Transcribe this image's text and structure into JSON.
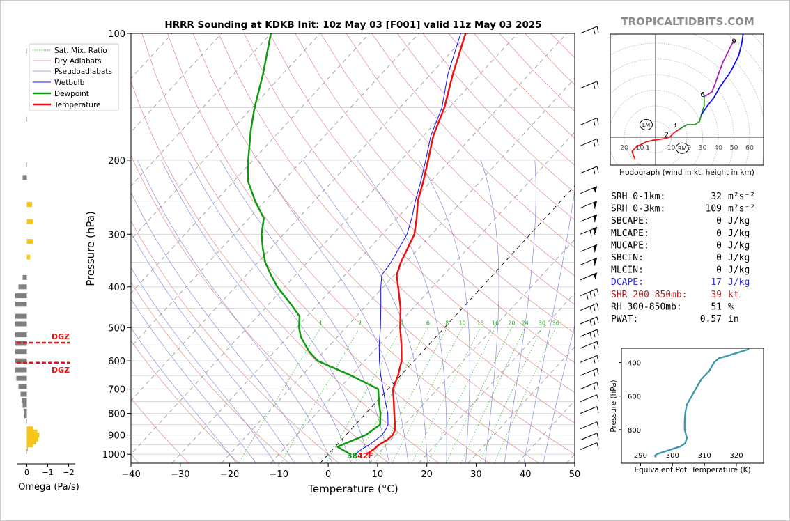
{
  "brand": "TROPICALTIDBITS.COM",
  "chart_data": [
    {
      "type": "line",
      "subtype": "skew-t",
      "title": "HRRR Sounding at KDKB Init: 10z May 03 [F001] valid 11z May 03 2025",
      "xlabel": "Temperature (°C)",
      "ylabel": "Pressure (hPa)",
      "xlim": [
        -40,
        50
      ],
      "ylim": [
        1050,
        100
      ],
      "yscale": "log",
      "xticks": [
        "−40",
        "−30",
        "−20",
        "−10",
        "0",
        "10",
        "20",
        "30",
        "40",
        "50"
      ],
      "yticks": [
        "100",
        "200",
        "300",
        "400",
        "500",
        "600",
        "700",
        "800",
        "900",
        "1000"
      ],
      "mixing_ratio_labels": [
        "1",
        "2",
        "4",
        "6",
        "8",
        "10",
        "13",
        "16",
        "20",
        "24",
        "30",
        "36"
      ],
      "legend": {
        "placement": "top-left",
        "entries": [
          "Sat. Mix. Ratio",
          "Dry Adiabats",
          "Pseudoadiabats",
          "Wetbulb",
          "Dewpoint",
          "Temperature"
        ]
      },
      "series": [
        {
          "name": "Temperature",
          "color": "#ee1111",
          "points": [
            [
              1000,
              7.7
            ],
            [
              975,
              8.3
            ],
            [
              950,
              8.5
            ],
            [
              925,
              9.3
            ],
            [
              900,
              9.5
            ],
            [
              875,
              9.0
            ],
            [
              850,
              8.0
            ],
            [
              800,
              5.8
            ],
            [
              750,
              3.5
            ],
            [
              700,
              1.0
            ],
            [
              650,
              -0.5
            ],
            [
              600,
              -2.5
            ],
            [
              550,
              -5.5
            ],
            [
              500,
              -9.0
            ],
            [
              450,
              -12.5
            ],
            [
              400,
              -17.0
            ],
            [
              375,
              -19.5
            ],
            [
              350,
              -21.0
            ],
            [
              300,
              -23.5
            ],
            [
              275,
              -26.0
            ],
            [
              250,
              -29.0
            ],
            [
              225,
              -31.5
            ],
            [
              200,
              -34.5
            ],
            [
              175,
              -38.0
            ],
            [
              150,
              -41.0
            ],
            [
              125,
              -45.5
            ],
            [
              100,
              -50.5
            ]
          ]
        },
        {
          "name": "Dewpoint",
          "color": "#119911",
          "points": [
            [
              1000,
              4.5
            ],
            [
              975,
              2.0
            ],
            [
              960,
              0.5
            ],
            [
              950,
              1.0
            ],
            [
              925,
              2.5
            ],
            [
              900,
              4.0
            ],
            [
              850,
              5.0
            ],
            [
              800,
              3.0
            ],
            [
              750,
              0.5
            ],
            [
              700,
              -2.0
            ],
            [
              650,
              -10.0
            ],
            [
              600,
              -19.5
            ],
            [
              570,
              -23.0
            ],
            [
              550,
              -25.0
            ],
            [
              525,
              -27.5
            ],
            [
              500,
              -29.5
            ],
            [
              470,
              -31.5
            ],
            [
              440,
              -35.5
            ],
            [
              400,
              -41.5
            ],
            [
              375,
              -45.0
            ],
            [
              350,
              -48.5
            ],
            [
              325,
              -51.5
            ],
            [
              300,
              -54.5
            ],
            [
              275,
              -57.0
            ],
            [
              250,
              -62.0
            ],
            [
              225,
              -67.0
            ],
            [
              200,
              -71.0
            ],
            [
              170,
              -76.0
            ],
            [
              150,
              -79.5
            ],
            [
              125,
              -84.0
            ],
            [
              100,
              -90.0
            ]
          ]
        },
        {
          "name": "Wetbulb",
          "color": "#1111ee",
          "points": [
            [
              1000,
              5.5
            ],
            [
              975,
              5.8
            ],
            [
              950,
              6.5
            ],
            [
              925,
              7.0
            ],
            [
              900,
              7.3
            ],
            [
              875,
              7.1
            ],
            [
              850,
              6.6
            ],
            [
              800,
              4.5
            ],
            [
              750,
              1.8
            ],
            [
              700,
              -1.0
            ],
            [
              650,
              -4.0
            ],
            [
              600,
              -7.0
            ],
            [
              550,
              -10.0
            ],
            [
              500,
              -13.0
            ],
            [
              450,
              -16.5
            ],
            [
              400,
              -20.5
            ],
            [
              375,
              -22.5
            ],
            [
              350,
              -23.0
            ],
            [
              300,
              -25.0
            ],
            [
              275,
              -27.0
            ],
            [
              250,
              -29.5
            ],
            [
              225,
              -32.0
            ],
            [
              200,
              -35.0
            ],
            [
              175,
              -38.5
            ],
            [
              150,
              -41.5
            ],
            [
              125,
              -46.5
            ],
            [
              100,
              -51.5
            ]
          ]
        }
      ],
      "annotations": [
        "38",
        "42F"
      ]
    },
    {
      "type": "bar",
      "subtype": "omega-profile",
      "xlabel": "Omega (Pa/s)",
      "xticks": [
        "0",
        "−1",
        "−2"
      ],
      "xlim": [
        0.5,
        -2.5
      ],
      "dgz_label": "DGZ",
      "dgz_pressures": [
        543,
        606
      ],
      "values": [
        [
          985,
          0.0
        ],
        [
          970,
          -0.05
        ],
        [
          950,
          -0.3
        ],
        [
          935,
          -0.45
        ],
        [
          920,
          -0.55
        ],
        [
          900,
          -0.6
        ],
        [
          885,
          -0.5
        ],
        [
          870,
          -0.3
        ],
        [
          835,
          0.05
        ],
        [
          810,
          0.12
        ],
        [
          790,
          0.15
        ],
        [
          765,
          0.2
        ],
        [
          745,
          0.25
        ],
        [
          720,
          0.3
        ],
        [
          690,
          0.4
        ],
        [
          660,
          0.5
        ],
        [
          630,
          0.6
        ],
        [
          600,
          0.75
        ],
        [
          570,
          0.85
        ],
        [
          545,
          0.8
        ],
        [
          520,
          0.9
        ],
        [
          490,
          1.0
        ],
        [
          470,
          0.95
        ],
        [
          440,
          0.85
        ],
        [
          420,
          0.75
        ],
        [
          400,
          0.4
        ],
        [
          380,
          0.2
        ],
        [
          340,
          -0.15
        ],
        [
          312,
          -0.3
        ],
        [
          280,
          -0.3
        ],
        [
          255,
          -0.25
        ],
        [
          220,
          0.2
        ],
        [
          205,
          0.05
        ],
        [
          160,
          0.0
        ],
        [
          110,
          0.02
        ]
      ]
    },
    {
      "type": "line",
      "subtype": "hodograph",
      "caption": "Hodograph (wind in kt, height in km)",
      "ring_labels_left": [
        "20",
        "10"
      ],
      "ring_labels_right": [
        "10",
        "20",
        "30",
        "40",
        "50",
        "60"
      ],
      "height_labels": [
        "1",
        "2",
        "3",
        "6",
        "9"
      ],
      "storm_motion_labels": [
        "LM",
        "RM"
      ],
      "segments": [
        {
          "color": "#ee1111",
          "points": [
            [
              -13,
              -14
            ],
            [
              -14,
              -12
            ],
            [
              -15,
              -9
            ],
            [
              -12,
              -6
            ],
            [
              -6,
              -3
            ],
            [
              -2,
              -2
            ],
            [
              5,
              -1
            ],
            [
              9,
              0
            ],
            [
              12,
              3
            ],
            [
              15,
              5
            ]
          ]
        },
        {
          "color": "#229922",
          "points": [
            [
              15,
              5
            ],
            [
              20,
              8
            ],
            [
              25,
              8
            ],
            [
              28,
              10
            ],
            [
              30,
              17
            ],
            [
              31,
              20
            ],
            [
              31,
              26
            ]
          ]
        },
        {
          "color": "#aa22aa",
          "points": [
            [
              31,
              26
            ],
            [
              33,
              27
            ],
            [
              36,
              29
            ],
            [
              38,
              34
            ],
            [
              40,
              40
            ],
            [
              43,
              48
            ],
            [
              48,
              58
            ],
            [
              50,
              62
            ]
          ]
        },
        {
          "color": "#1111ee",
          "points": [
            [
              29,
              14
            ],
            [
              33,
              20
            ],
            [
              37,
              25
            ],
            [
              41,
              32
            ],
            [
              48,
              42
            ],
            [
              53,
              52
            ],
            [
              55,
              60
            ],
            [
              56,
              67
            ]
          ]
        }
      ],
      "lm": [
        -6,
        8
      ],
      "rm": [
        17,
        -7
      ]
    },
    {
      "type": "line",
      "subtype": "theta-e-profile",
      "xlabel": "Equivalent Pot. Temperature (K)",
      "ylabel": "Pressure (hPa)",
      "xticks": [
        "290",
        "300",
        "310",
        "320"
      ],
      "yticks": [
        "400",
        "600",
        "800"
      ],
      "color": "#3a96a8",
      "points": [
        [
          965,
          294.8
        ],
        [
          955,
          294.5
        ],
        [
          945,
          295.2
        ],
        [
          925,
          298.5
        ],
        [
          900,
          302.5
        ],
        [
          880,
          304.0
        ],
        [
          850,
          304.5
        ],
        [
          800,
          303.8
        ],
        [
          750,
          303.8
        ],
        [
          700,
          304.0
        ],
        [
          650,
          304.5
        ],
        [
          600,
          306.0
        ],
        [
          550,
          307.5
        ],
        [
          500,
          309.0
        ],
        [
          450,
          311.5
        ],
        [
          400,
          313.0
        ],
        [
          375,
          314.5
        ],
        [
          350,
          319.0
        ],
        [
          320,
          324.0
        ]
      ]
    }
  ],
  "indices": [
    {
      "label": "SRH 0-1km:",
      "value": "32",
      "unit": "m²s⁻²",
      "color": "#000000"
    },
    {
      "label": "SRH 0-3km:",
      "value": "109",
      "unit": "m²s⁻²",
      "color": "#000000"
    },
    {
      "label": "SBCAPE:",
      "value": "0",
      "unit": "J/kg",
      "color": "#000000"
    },
    {
      "label": "MLCAPE:",
      "value": "0",
      "unit": "J/kg",
      "color": "#000000"
    },
    {
      "label": "MUCAPE:",
      "value": "0",
      "unit": "J/kg",
      "color": "#000000"
    },
    {
      "label": "SBCIN:",
      "value": "0",
      "unit": "J/kg",
      "color": "#000000"
    },
    {
      "label": "MLCIN:",
      "value": "0",
      "unit": "J/kg",
      "color": "#000000"
    },
    {
      "label": "DCAPE:",
      "value": "17",
      "unit": "J/kg",
      "color": "#3333cc"
    },
    {
      "label": "SHR 200-850mb:",
      "value": "39",
      "unit": "kt",
      "color": "#aa2222"
    },
    {
      "label": "RH 300-850mb:",
      "value": "51",
      "unit": "%",
      "color": "#000000"
    },
    {
      "label": "PWAT:",
      "value": "0.57",
      "unit": "in",
      "color": "#000000"
    }
  ]
}
